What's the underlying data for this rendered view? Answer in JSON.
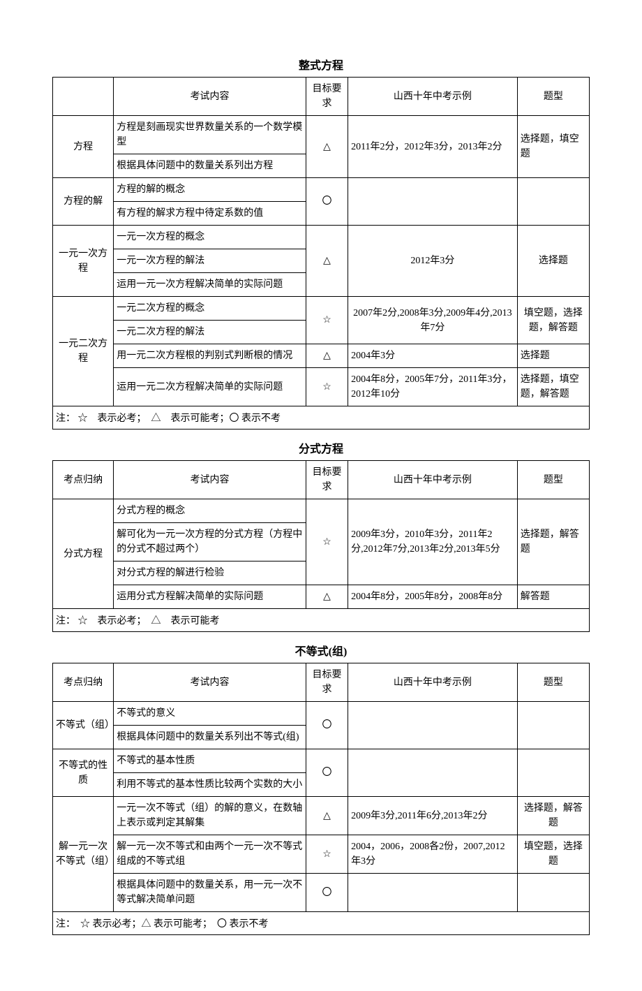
{
  "sections": [
    {
      "title": "整式方程",
      "headers": {
        "topic": "",
        "content": "考试内容",
        "req": "目标要求",
        "example": "山西十年中考示例",
        "type": "题型"
      },
      "has_topic_header": false,
      "note": "注： ☆　表示必考；　△　表示可能考；〇 表示不考",
      "rows": [
        {
          "topic": "方程",
          "topic_rowspan": 2,
          "content": "方程是刻画现实世界数量关系的一个数学模型",
          "req": "△",
          "req_rowspan": 2,
          "example": "2011年2分，2012年3分，2013年2分",
          "example_rowspan": 2,
          "type": "选择题，填空题",
          "type_rowspan": 2
        },
        {
          "content": "根据具体问题中的数量关系列出方程"
        },
        {
          "topic": "方程的解",
          "topic_rowspan": 2,
          "content": "方程的解的概念",
          "req": "〇",
          "req_rowspan": 2,
          "example": "",
          "example_rowspan": 2,
          "type": "",
          "type_rowspan": 2
        },
        {
          "content": "有方程的解求方程中待定系数的值"
        },
        {
          "topic": "一元一次方程",
          "topic_rowspan": 3,
          "content": "一元一次方程的概念",
          "req": "△",
          "req_rowspan": 3,
          "example": "2012年3分",
          "example_rowspan": 3,
          "example_center": true,
          "type": "选择题",
          "type_rowspan": 3,
          "type_center": true
        },
        {
          "content": "一元一次方程的解法"
        },
        {
          "content": "运用一元一次方程解决简单的实际问题"
        },
        {
          "topic": "一元二次方程",
          "topic_rowspan": 4,
          "content": "一元二次方程的概念",
          "req": "☆",
          "req_rowspan": 2,
          "example": "2007年2分,2008年3分,2009年4分,2013年7分",
          "example_rowspan": 2,
          "example_center": true,
          "type": "填空题，选择题，解答题",
          "type_rowspan": 2,
          "type_center": true
        },
        {
          "content": "一元二次方程的解法"
        },
        {
          "content": "用一元二次方程根的判别式判断根的情况",
          "req": "△",
          "example": "2004年3分",
          "type": "选择题"
        },
        {
          "content": "运用一元二次方程解决简单的实际问题",
          "req": "☆",
          "example": "2004年8分，2005年7分，2011年3分，2012年10分",
          "type": "选择题，填空题，解答题"
        }
      ]
    },
    {
      "title": "分式方程",
      "headers": {
        "topic": "考点归纳",
        "content": "考试内容",
        "req": "目标要求",
        "example": "山西十年中考示例",
        "type": "题型"
      },
      "has_topic_header": true,
      "note": "注： ☆　表示必考；　△　表示可能考",
      "rows": [
        {
          "topic": "分式方程",
          "topic_rowspan": 4,
          "content": "分式方程的概念",
          "req": "☆",
          "req_rowspan": 3,
          "example": "2009年3分，2010年3分，2011年2分,2012年7分,2013年2分,2013年5分",
          "example_rowspan": 3,
          "type": "选择题，解答题",
          "type_rowspan": 3
        },
        {
          "content": "解可化为一元一次方程的分式方程（方程中的分式不超过两个）"
        },
        {
          "content": "对分式方程的解进行检验"
        },
        {
          "content": "运用分式方程解决简单的实际问题",
          "req": "△",
          "example": "2004年8分，2005年8分，2008年8分",
          "type": "解答题"
        }
      ]
    },
    {
      "title": "不等式(组)",
      "headers": {
        "topic": "考点归纳",
        "content": "考试内容",
        "req": "目标要求",
        "example": "山西十年中考示例",
        "type": "题型"
      },
      "has_topic_header": true,
      "note": "注：　☆ 表示必考；△ 表示可能考；　〇 表示不考",
      "rows": [
        {
          "topic": "不等式（组）",
          "topic_rowspan": 2,
          "content": "不等式的意义",
          "req": "〇",
          "req_rowspan": 2,
          "example": "",
          "example_rowspan": 2,
          "type": "",
          "type_rowspan": 2
        },
        {
          "content": "根据具体问题中的数量关系列出不等式(组)"
        },
        {
          "topic": "不等式的性质",
          "topic_rowspan": 2,
          "content": "不等式的基本性质",
          "req": "〇",
          "req_rowspan": 2,
          "example": "",
          "example_rowspan": 2,
          "type": "",
          "type_rowspan": 2
        },
        {
          "content": "利用不等式的基本性质比较两个实数的大小"
        },
        {
          "topic": "解一元一次不等式（组）",
          "topic_rowspan": 3,
          "content": "一元一次不等式（组）的解的意义，在数轴上表示或判定其解集",
          "req": "△",
          "example": "2009年3分,2011年6分,2013年2分",
          "type": "选择题，解答题",
          "type_center": true
        },
        {
          "content": "解一元一次不等式和由两个一元一次不等式组成的不等式组",
          "req": "☆",
          "example": "2004，2006，2008各2份，2007,2012年3分",
          "type": "填空题，选择题",
          "type_center": true
        },
        {
          "content": "根据具体问题中的数量关系，用一元一次不等式解决简单问题",
          "req": "〇",
          "example": "",
          "type": ""
        }
      ]
    }
  ]
}
